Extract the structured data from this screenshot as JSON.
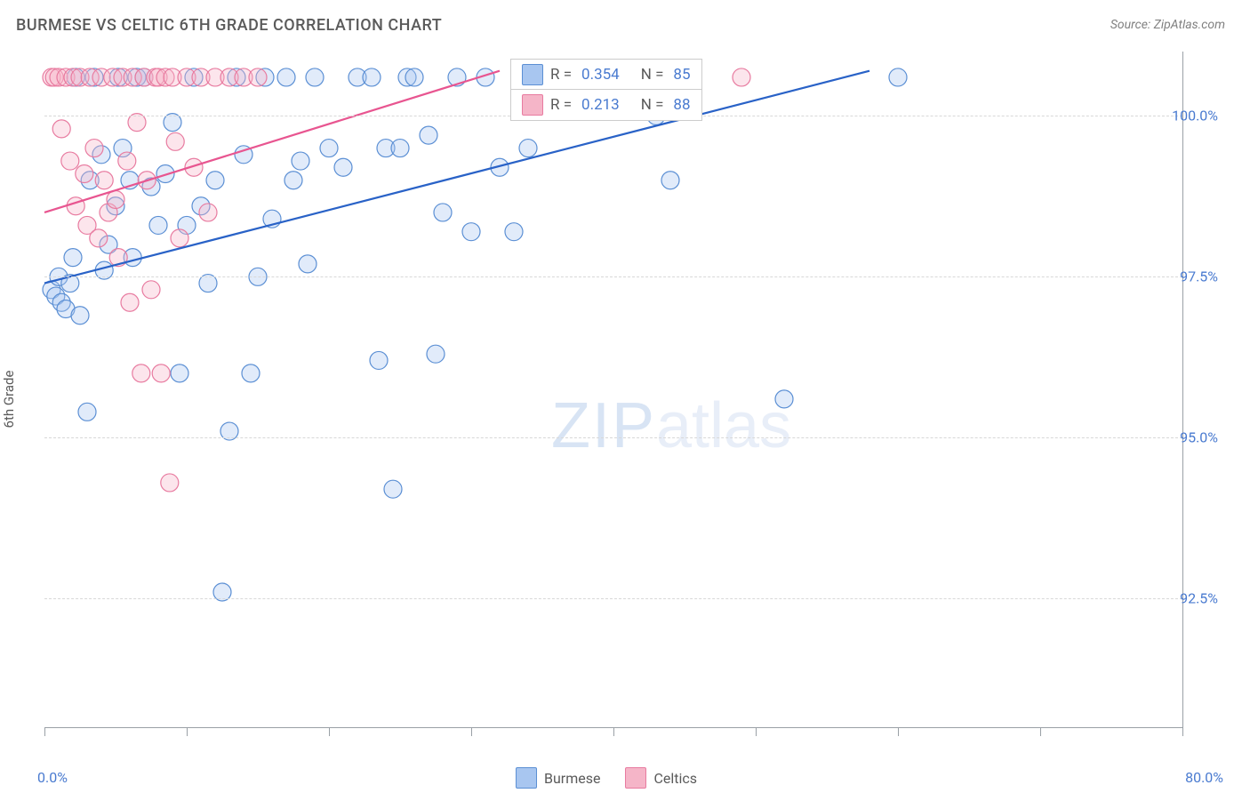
{
  "title": "BURMESE VS CELTIC 6TH GRADE CORRELATION CHART",
  "source": "Source: ZipAtlas.com",
  "watermark_zip": "ZIP",
  "watermark_atlas": "atlas",
  "y_axis_label": "6th Grade",
  "chart": {
    "type": "scatter",
    "xlim": [
      0,
      80
    ],
    "ylim": [
      90.5,
      101.0
    ],
    "x_ticks": [
      0,
      10,
      20,
      30,
      40,
      50,
      60,
      70,
      80
    ],
    "x_tick_labels": {
      "0": "0.0%",
      "80": "80.0%"
    },
    "y_ticks": [
      92.5,
      95.0,
      97.5,
      100.0
    ],
    "y_tick_labels": [
      "92.5%",
      "95.0%",
      "97.5%",
      "100.0%"
    ],
    "background_color": "#ffffff",
    "grid_color": "#d8d8d8",
    "marker_radius": 10,
    "marker_fill_opacity": 0.35,
    "marker_stroke_width": 1.2,
    "series": [
      {
        "name": "Burmese",
        "color_fill": "#a8c6f0",
        "color_stroke": "#5b8fd4",
        "line_color": "#2962c7",
        "line_width": 2.2,
        "R": "0.354",
        "N": "85",
        "trend": {
          "x1": 0,
          "y1": 97.4,
          "x2": 58,
          "y2": 100.7
        },
        "points": [
          [
            0.5,
            97.3
          ],
          [
            0.8,
            97.2
          ],
          [
            1.0,
            97.5
          ],
          [
            1.2,
            97.1
          ],
          [
            1.5,
            97.0
          ],
          [
            1.8,
            97.4
          ],
          [
            2.0,
            97.8
          ],
          [
            2.2,
            100.6
          ],
          [
            2.5,
            96.9
          ],
          [
            3.0,
            95.4
          ],
          [
            3.2,
            99.0
          ],
          [
            3.5,
            100.6
          ],
          [
            4.0,
            99.4
          ],
          [
            4.2,
            97.6
          ],
          [
            4.5,
            98.0
          ],
          [
            5.0,
            98.6
          ],
          [
            5.2,
            100.6
          ],
          [
            5.5,
            99.5
          ],
          [
            6.0,
            99.0
          ],
          [
            6.2,
            97.8
          ],
          [
            6.5,
            100.6
          ],
          [
            7.0,
            100.6
          ],
          [
            7.5,
            98.9
          ],
          [
            8.0,
            98.3
          ],
          [
            8.5,
            99.1
          ],
          [
            9.0,
            99.9
          ],
          [
            9.5,
            96.0
          ],
          [
            10.0,
            98.3
          ],
          [
            10.5,
            100.6
          ],
          [
            11.0,
            98.6
          ],
          [
            11.5,
            97.4
          ],
          [
            12.0,
            99.0
          ],
          [
            12.5,
            92.6
          ],
          [
            13.0,
            95.1
          ],
          [
            13.5,
            100.6
          ],
          [
            14.0,
            99.4
          ],
          [
            14.5,
            96.0
          ],
          [
            15.0,
            97.5
          ],
          [
            15.5,
            100.6
          ],
          [
            16.0,
            98.4
          ],
          [
            17.0,
            100.6
          ],
          [
            17.5,
            99.0
          ],
          [
            18.0,
            99.3
          ],
          [
            18.5,
            97.7
          ],
          [
            19.0,
            100.6
          ],
          [
            20.0,
            99.5
          ],
          [
            21.0,
            99.2
          ],
          [
            22.0,
            100.6
          ],
          [
            23.0,
            100.6
          ],
          [
            23.5,
            96.2
          ],
          [
            24.0,
            99.5
          ],
          [
            24.5,
            94.2
          ],
          [
            25.0,
            99.5
          ],
          [
            25.5,
            100.6
          ],
          [
            26.0,
            100.6
          ],
          [
            27.0,
            99.7
          ],
          [
            27.5,
            96.3
          ],
          [
            28.0,
            98.5
          ],
          [
            29.0,
            100.6
          ],
          [
            30.0,
            98.2
          ],
          [
            31.0,
            100.6
          ],
          [
            32.0,
            99.2
          ],
          [
            33.0,
            98.2
          ],
          [
            34.0,
            99.5
          ],
          [
            35.0,
            100.6
          ],
          [
            43.0,
            100.0
          ],
          [
            44.0,
            99.0
          ],
          [
            45.0,
            100.6
          ],
          [
            52.0,
            95.6
          ],
          [
            60.0,
            100.6
          ]
        ]
      },
      {
        "name": "Celtics",
        "color_fill": "#f5b5c8",
        "color_stroke": "#e87ba0",
        "line_color": "#e85590",
        "line_width": 2.2,
        "R": "0.213",
        "N": "88",
        "trend": {
          "x1": 0,
          "y1": 98.5,
          "x2": 32,
          "y2": 100.7
        },
        "points": [
          [
            0.5,
            100.6
          ],
          [
            0.7,
            100.6
          ],
          [
            1.0,
            100.6
          ],
          [
            1.2,
            99.8
          ],
          [
            1.5,
            100.6
          ],
          [
            1.8,
            99.3
          ],
          [
            2.0,
            100.6
          ],
          [
            2.2,
            98.6
          ],
          [
            2.5,
            100.6
          ],
          [
            2.8,
            99.1
          ],
          [
            3.0,
            98.3
          ],
          [
            3.2,
            100.6
          ],
          [
            3.5,
            99.5
          ],
          [
            3.8,
            98.1
          ],
          [
            4.0,
            100.6
          ],
          [
            4.2,
            99.0
          ],
          [
            4.5,
            98.5
          ],
          [
            4.8,
            100.6
          ],
          [
            5.0,
            98.7
          ],
          [
            5.2,
            97.8
          ],
          [
            5.5,
            100.6
          ],
          [
            5.8,
            99.3
          ],
          [
            6.0,
            97.1
          ],
          [
            6.2,
            100.6
          ],
          [
            6.5,
            99.9
          ],
          [
            6.8,
            96.0
          ],
          [
            7.0,
            100.6
          ],
          [
            7.2,
            99.0
          ],
          [
            7.5,
            97.3
          ],
          [
            7.8,
            100.6
          ],
          [
            8.0,
            100.6
          ],
          [
            8.2,
            96.0
          ],
          [
            8.5,
            100.6
          ],
          [
            8.8,
            94.3
          ],
          [
            9.0,
            100.6
          ],
          [
            9.2,
            99.6
          ],
          [
            9.5,
            98.1
          ],
          [
            10.0,
            100.6
          ],
          [
            10.5,
            99.2
          ],
          [
            11.0,
            100.6
          ],
          [
            11.5,
            98.5
          ],
          [
            12.0,
            100.6
          ],
          [
            13.0,
            100.6
          ],
          [
            14.0,
            100.6
          ],
          [
            15.0,
            100.6
          ],
          [
            49.0,
            100.6
          ]
        ]
      }
    ]
  },
  "legend_labels": {
    "r_prefix": "R =",
    "n_prefix": "N =",
    "burmese": "Burmese",
    "celtics": "Celtics"
  }
}
